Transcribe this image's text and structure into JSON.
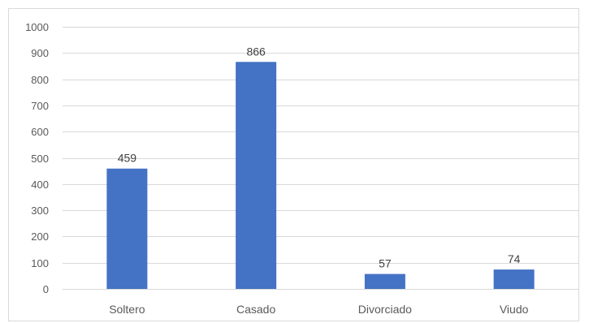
{
  "chart_data": {
    "type": "bar",
    "title": "",
    "xlabel": "",
    "ylabel": "",
    "categories": [
      "Soltero",
      "Casado",
      "Divorciado",
      "Viudo"
    ],
    "values": [
      459,
      866,
      57,
      74
    ],
    "data_labels": [
      "459",
      "866",
      "57",
      "74"
    ],
    "ylim": [
      0,
      1000
    ],
    "yticks": [
      0,
      100,
      200,
      300,
      400,
      500,
      600,
      700,
      800,
      900,
      1000
    ],
    "ytick_labels": [
      "0",
      "100",
      "200",
      "300",
      "400",
      "500",
      "600",
      "700",
      "800",
      "900",
      "1000"
    ],
    "grid": true,
    "legend": "none",
    "bar_color": "#4472c4",
    "grid_color": "#d9d9d9"
  }
}
